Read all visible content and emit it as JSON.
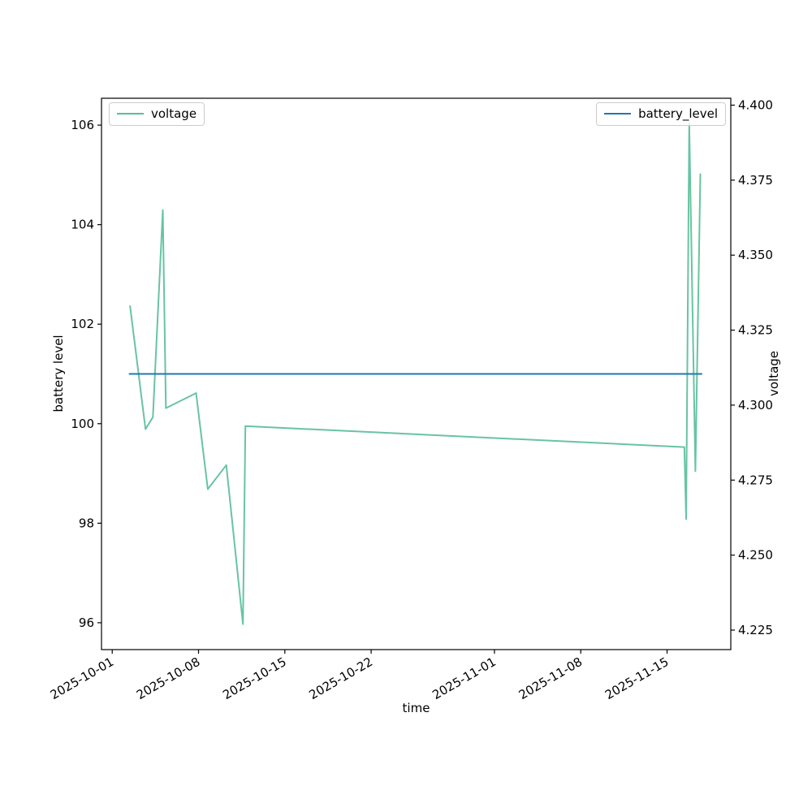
{
  "figure": {
    "xlabel": "time",
    "ylabel_left": "battery level",
    "ylabel_right": "voltage",
    "background": "#ffffff",
    "spine_color": "#000000"
  },
  "legends": [
    {
      "label": "voltage",
      "color": "#57be98",
      "position": "upper-left"
    },
    {
      "label": "battery_level",
      "color": "#1f77b4",
      "position": "upper-right"
    }
  ],
  "chart_data": {
    "type": "line",
    "title": "",
    "xlabel": "time",
    "grid": false,
    "x_axis": {
      "unit": "days since 2025-10-01",
      "lim": [
        -0.87,
        50.17
      ],
      "ticks": [
        0,
        7,
        14,
        21,
        31,
        38,
        45
      ],
      "tick_labels": [
        "2025-10-01",
        "2025-10-08",
        "2025-10-15",
        "2025-10-22",
        "2025-11-01",
        "2025-11-08",
        "2025-11-15"
      ],
      "tick_rotation_deg": 30
    },
    "y_axis_left": {
      "label": "battery level",
      "lim": [
        95.46,
        106.54
      ],
      "ticks": [
        96,
        98,
        100,
        102,
        104,
        106
      ],
      "tick_labels": [
        "96",
        "98",
        "100",
        "102",
        "104",
        "106"
      ]
    },
    "y_axis_right": {
      "label": "voltage",
      "lim": [
        4.2185,
        4.4023
      ],
      "ticks": [
        4.225,
        4.25,
        4.275,
        4.3,
        4.325,
        4.35,
        4.375,
        4.4
      ],
      "tick_labels": [
        "4.225",
        "4.250",
        "4.275",
        "4.300",
        "4.325",
        "4.350",
        "4.375",
        "4.400"
      ]
    },
    "series": [
      {
        "name": "voltage",
        "axis": "right",
        "color": "#57be98",
        "opacity": 0.9,
        "x_days": [
          1.45,
          2.7,
          3.3,
          4.1,
          4.35,
          6.8,
          7.75,
          9.25,
          10.6,
          10.8,
          46.4,
          46.55,
          46.8,
          47.3,
          47.7
        ],
        "values": [
          4.333,
          4.292,
          4.296,
          4.365,
          4.299,
          4.304,
          4.272,
          4.28,
          4.227,
          4.293,
          4.286,
          4.262,
          4.394,
          4.278,
          4.377
        ]
      },
      {
        "name": "battery_level",
        "axis": "left",
        "color": "#1f77b4",
        "opacity": 1,
        "x_days": [
          1.4,
          47.8
        ],
        "values": [
          101,
          101
        ]
      }
    ]
  }
}
